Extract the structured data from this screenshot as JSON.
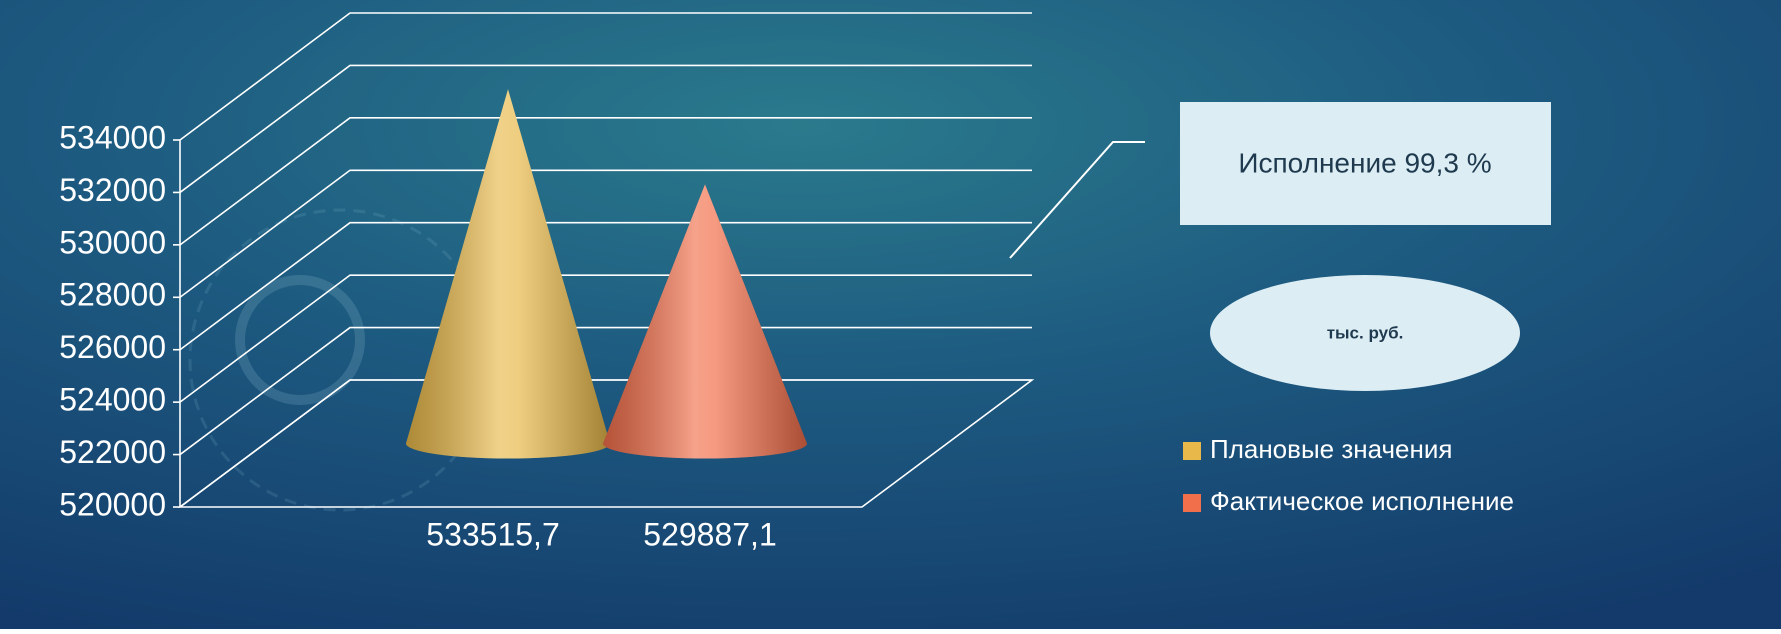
{
  "chart_data": {
    "type": "cone",
    "series": [
      {
        "name": "Плановые значения",
        "color": "#e8b94a",
        "values": [
          533515.7
        ],
        "value_labels": [
          "533515,7"
        ]
      },
      {
        "name": "Фактическое исполнение",
        "color": "#f26f4b",
        "values": [
          529887.1
        ],
        "value_labels": [
          "529887,1"
        ]
      }
    ],
    "ylim": [
      520000,
      534000
    ],
    "yticks": [
      520000,
      522000,
      524000,
      526000,
      528000,
      530000,
      532000,
      534000
    ],
    "grid": true,
    "legend": "right",
    "annotations": [
      "Исполнение 99,3 %",
      "тыс. руб."
    ]
  }
}
